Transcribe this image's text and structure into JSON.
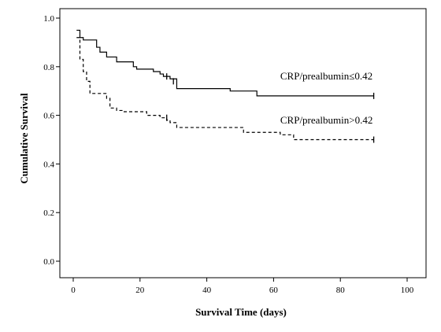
{
  "chart_data": {
    "type": "line",
    "title": "",
    "xlabel": "Survival Time (days)",
    "ylabel": "Cumulative Survival",
    "xlim": [
      0,
      100
    ],
    "ylim": [
      0.0,
      1.0
    ],
    "x_ticks": [
      0,
      20,
      40,
      60,
      80,
      100
    ],
    "x_tick_labels": [
      "0",
      "20",
      "40",
      "60",
      "80",
      "100"
    ],
    "y_ticks": [
      0.0,
      0.2,
      0.4,
      0.6,
      0.8,
      1.0
    ],
    "y_tick_labels": [
      "0.0",
      "0.2",
      "0.4",
      "0.6",
      "0.8",
      "1.0"
    ],
    "grid": false,
    "legend": "none",
    "series": [
      {
        "name": "CRP/prealbumin≤0.42",
        "style": "solid",
        "color": "#000000",
        "step_points": [
          [
            1,
            0.95
          ],
          [
            2,
            0.92
          ],
          [
            3,
            0.91
          ],
          [
            7,
            0.88
          ],
          [
            8,
            0.86
          ],
          [
            10,
            0.84
          ],
          [
            13,
            0.82
          ],
          [
            18,
            0.8
          ],
          [
            19,
            0.79
          ],
          [
            24,
            0.78
          ],
          [
            26,
            0.77
          ],
          [
            27,
            0.76
          ],
          [
            29,
            0.75
          ],
          [
            31,
            0.71
          ],
          [
            47,
            0.7
          ],
          [
            55,
            0.68
          ],
          [
            90,
            0.68
          ]
        ],
        "censored": [
          [
            28,
            0.76
          ],
          [
            30,
            0.74
          ],
          [
            90,
            0.68
          ]
        ]
      },
      {
        "name": "CRP/prealbumin>0.42",
        "style": "dashed",
        "color": "#000000",
        "step_points": [
          [
            1,
            0.92
          ],
          [
            2,
            0.83
          ],
          [
            3,
            0.78
          ],
          [
            4,
            0.74
          ],
          [
            5,
            0.69
          ],
          [
            10,
            0.67
          ],
          [
            11,
            0.63
          ],
          [
            13,
            0.62
          ],
          [
            15,
            0.615
          ],
          [
            22,
            0.6
          ],
          [
            26,
            0.59
          ],
          [
            28,
            0.58
          ],
          [
            29,
            0.57
          ],
          [
            31,
            0.55
          ],
          [
            51,
            0.53
          ],
          [
            62,
            0.52
          ],
          [
            66,
            0.5
          ],
          [
            90,
            0.5
          ]
        ],
        "censored": [
          [
            28,
            0.59
          ],
          [
            90,
            0.5
          ]
        ]
      }
    ],
    "annotations": [
      {
        "text": "CRP/prealbumin≤0.42",
        "x": 62,
        "y": 0.76
      },
      {
        "text": "CRP/prealbumin>0.42",
        "x": 62,
        "y": 0.58
      }
    ]
  }
}
